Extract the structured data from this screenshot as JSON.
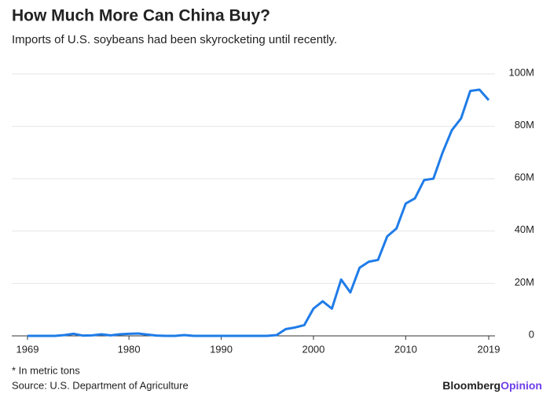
{
  "chart_data": {
    "type": "line",
    "title": "How Much More Can China Buy?",
    "subtitle": "Imports of U.S. soybeans had been skyrocketing until recently.",
    "note": "* In metric tons",
    "source": "Source: U.S. Department of Agriculture",
    "brand": [
      "Bloomberg",
      "Opinion"
    ],
    "x": [
      1969,
      1970,
      1971,
      1972,
      1973,
      1974,
      1975,
      1976,
      1977,
      1978,
      1979,
      1980,
      1981,
      1982,
      1983,
      1984,
      1985,
      1986,
      1987,
      1988,
      1989,
      1990,
      1991,
      1992,
      1993,
      1994,
      1995,
      1996,
      1997,
      1998,
      1999,
      2000,
      2001,
      2002,
      2003,
      2004,
      2005,
      2006,
      2007,
      2008,
      2009,
      2010,
      2011,
      2012,
      2013,
      2014,
      2015,
      2016,
      2017,
      2018,
      2019
    ],
    "series": [
      {
        "name": "Imports of U.S. soybeans",
        "color": "#1f7ce8",
        "values": [
          0,
          0,
          0,
          0,
          300000,
          800000,
          100000,
          200000,
          600000,
          200000,
          600000,
          800000,
          900000,
          500000,
          100000,
          0,
          0,
          300000,
          0,
          0,
          0,
          0,
          0,
          0,
          0,
          0,
          0,
          300000,
          2600000,
          3200000,
          4100000,
          10400000,
          13200000,
          10400000,
          21500000,
          16600000,
          26000000,
          28300000,
          29000000,
          38000000,
          41000000,
          50500000,
          52500000,
          59500000,
          60000000,
          70000000,
          78500000,
          83000000,
          93500000,
          94000000,
          90000000
        ]
      }
    ],
    "xlim": [
      1969,
      2019
    ],
    "xticks": [
      1969,
      1980,
      1990,
      2000,
      2010,
      2019
    ],
    "ylim": [
      0,
      100000000
    ],
    "yticks": [
      0,
      {
        "value": 20000000,
        "label": "20M"
      },
      {
        "value": 40000000,
        "label": "40M"
      },
      {
        "value": 60000000,
        "label": "60M"
      },
      {
        "value": 80000000,
        "label": "80M"
      },
      {
        "value": 100000000,
        "label": "100M"
      }
    ],
    "grid": true
  }
}
